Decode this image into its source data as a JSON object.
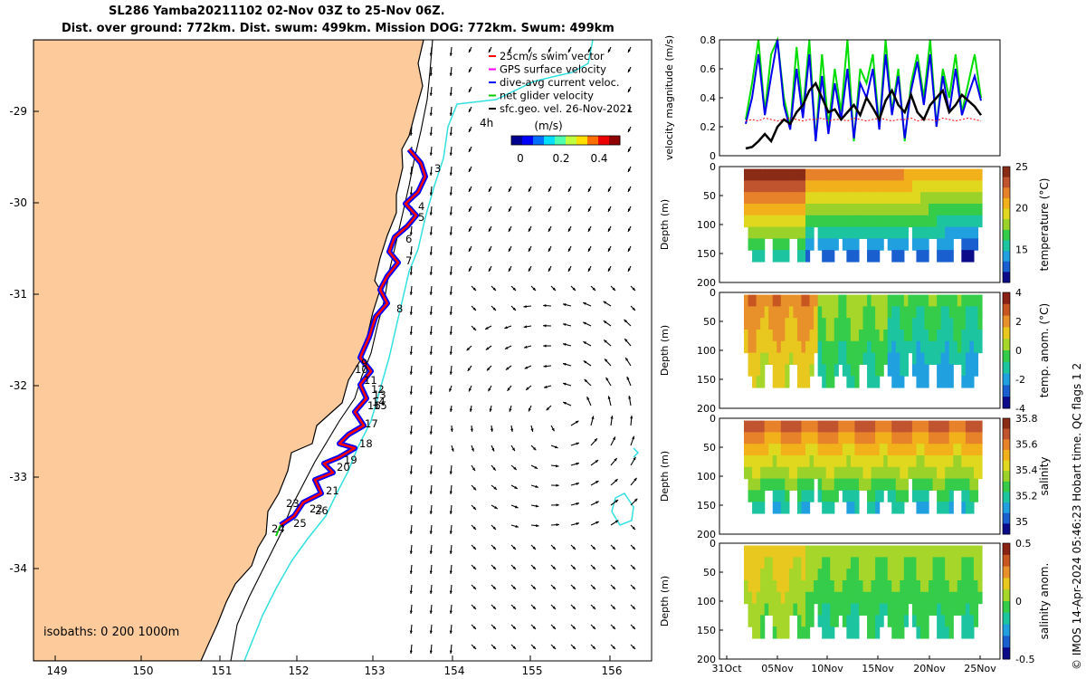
{
  "title": {
    "line1": "SL286 Yamba20211102 02-Nov 03Z to 25-Nov 06Z.",
    "line2": "Dist. over ground: 772km. Dist. swum: 499km. Mission DOG: 772km. Swum: 499km"
  },
  "map": {
    "legend": [
      {
        "label": "25cm/s swim vector",
        "color": "#ff0000"
      },
      {
        "label": "GPS surface velocity",
        "color": "#ff00ff"
      },
      {
        "label": "dive-avg current veloc.",
        "color": "#0000ff"
      },
      {
        "label": "net glider velocity",
        "color": "#00cc00"
      },
      {
        "label": "sfc.geo. vel. 26-Nov-2021",
        "color": "#000000"
      }
    ],
    "colorbar_unit": "(m/s)",
    "colorbar_ticks": [
      "0",
      "0.2",
      "0.4"
    ],
    "isobaths_label": "isobaths: 0   200  1000m",
    "lat_ticks": [
      "-29",
      "-30",
      "-31",
      "-32",
      "-33",
      "-34"
    ],
    "lon_ticks": [
      "149",
      "150",
      "151",
      "152",
      "153",
      "154",
      "155",
      "156"
    ],
    "track_labels": [
      "3",
      "4",
      "5",
      "6",
      "7",
      "8",
      "9",
      "10",
      "11",
      "12",
      "13",
      "14",
      "15",
      "16",
      "17",
      "18",
      "19",
      "20",
      "21",
      "22",
      "23",
      "24",
      "25",
      "26"
    ],
    "land_color": "#fdcb9b",
    "isobath_1000_color": "#33e0e0"
  },
  "chart_data": [
    {
      "type": "line",
      "ylabel": "velocity magnitude (m/s)",
      "ylim": [
        0,
        0.8
      ],
      "yticks": [
        "0",
        "0.2",
        "0.4",
        "0.6",
        "0.8"
      ],
      "x_date_range": [
        "2021-11-02",
        "2021-11-25"
      ],
      "series": [
        {
          "color": "#00dd00",
          "values": [
            0.25,
            0.5,
            0.8,
            0.3,
            0.7,
            0.8,
            0.4,
            0.2,
            0.75,
            0.3,
            0.8,
            0.1,
            0.7,
            0.2,
            0.6,
            0.3,
            0.8,
            0.1,
            0.6,
            0.5,
            0.7,
            0.2,
            0.8,
            0.3,
            0.6,
            0.1,
            0.5,
            0.7,
            0.4,
            0.8,
            0.2,
            0.6,
            0.4,
            0.7,
            0.3,
            0.5,
            0.7,
            0.4
          ]
        },
        {
          "color": "#0000ee",
          "values": [
            0.22,
            0.4,
            0.7,
            0.28,
            0.55,
            0.8,
            0.35,
            0.18,
            0.6,
            0.26,
            0.7,
            0.1,
            0.55,
            0.15,
            0.5,
            0.25,
            0.6,
            0.12,
            0.5,
            0.4,
            0.6,
            0.18,
            0.7,
            0.28,
            0.55,
            0.12,
            0.45,
            0.65,
            0.35,
            0.7,
            0.2,
            0.55,
            0.3,
            0.6,
            0.28,
            0.42,
            0.55,
            0.38
          ]
        },
        {
          "color": "#ff0000",
          "values": [
            0.24,
            0.25,
            0.24,
            0.26,
            0.25,
            0.24,
            0.25,
            0.26,
            0.25,
            0.24,
            0.25,
            0.25,
            0.26,
            0.24,
            0.25,
            0.25,
            0.24,
            0.26,
            0.25,
            0.24,
            0.25,
            0.26,
            0.25,
            0.24,
            0.25,
            0.25,
            0.26,
            0.24,
            0.25,
            0.25,
            0.24,
            0.26,
            0.25,
            0.24,
            0.25,
            0.26,
            0.25,
            0.24
          ]
        },
        {
          "color": "#000000",
          "values": [
            0.05,
            0.06,
            0.1,
            0.15,
            0.1,
            0.2,
            0.25,
            0.22,
            0.3,
            0.35,
            0.45,
            0.5,
            0.4,
            0.3,
            0.32,
            0.25,
            0.3,
            0.35,
            0.28,
            0.4,
            0.33,
            0.25,
            0.38,
            0.45,
            0.35,
            0.3,
            0.42,
            0.3,
            0.25,
            0.35,
            0.4,
            0.45,
            0.3,
            0.35,
            0.42,
            0.38,
            0.34,
            0.28
          ]
        }
      ]
    },
    {
      "type": "heatmap",
      "ylabel": "Depth (m)",
      "colorbar_label": "temperature (°C)",
      "yticks": [
        "0",
        "50",
        "100",
        "150",
        "200"
      ],
      "cbar_ticks": [
        "25",
        "20",
        "15"
      ],
      "clim": [
        11,
        25
      ]
    },
    {
      "type": "heatmap",
      "ylabel": "Depth (m)",
      "colorbar_label": "temp. anom. (°C)",
      "yticks": [
        "0",
        "50",
        "100",
        "150",
        "200"
      ],
      "cbar_ticks": [
        "4",
        "2",
        "0",
        "-2",
        "-4"
      ],
      "clim": [
        -4,
        4
      ]
    },
    {
      "type": "heatmap",
      "ylabel": "Depth (m)",
      "colorbar_label": "salinity",
      "yticks": [
        "0",
        "50",
        "100",
        "150",
        "200"
      ],
      "cbar_ticks": [
        "35.8",
        "35.6",
        "35.4",
        "35.2",
        "35"
      ],
      "clim": [
        34.9,
        35.8
      ]
    },
    {
      "type": "heatmap",
      "ylabel": "Depth (m)",
      "colorbar_label": "salinity anom.",
      "yticks": [
        "0",
        "50",
        "100",
        "150",
        "200"
      ],
      "cbar_ticks": [
        "0.5",
        "0",
        "-0.5"
      ],
      "clim": [
        -0.5,
        0.5
      ],
      "xticks": [
        "31Oct",
        "05Nov",
        "10Nov",
        "15Nov",
        "20Nov",
        "25Nov"
      ]
    }
  ],
  "side_note": "© IMOS 14-Apr-2024 05:46:23 Hobart time. QC flags 1  2"
}
